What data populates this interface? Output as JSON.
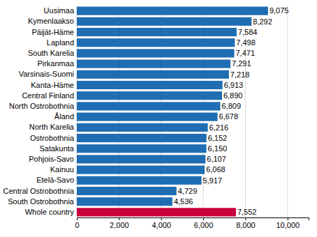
{
  "chart_data": {
    "type": "bar",
    "orientation": "horizontal",
    "categories": [
      "Uusimaa",
      "Kymenlaakso",
      "Päijät-Häme",
      "Lapland",
      "South Karelia",
      "Pirkanmaa",
      "Varsinais-Suomi",
      "Kanta-Häme",
      "Central Finland",
      "North Ostrobothnia",
      "Åland",
      "North Karelia",
      "Ostrobothnia",
      "Satakunta",
      "Pohjois-Savo",
      "Kainuu",
      "Etelä-Savo",
      "Central Ostrobothnia",
      "South Ostrobothnia",
      "Whole country"
    ],
    "values": [
      9075,
      8292,
      7584,
      7498,
      7471,
      7291,
      7218,
      6913,
      6890,
      6809,
      6678,
      6216,
      6152,
      6150,
      6107,
      6068,
      5917,
      4729,
      4536,
      7552
    ],
    "value_labels": [
      "9,075",
      "8,292",
      "7,584",
      "7,498",
      "7,471",
      "7,291",
      "7,218",
      "6,913",
      "6,890",
      "6,809",
      "6,678",
      "6,216",
      "6,152",
      "6,150",
      "6,107",
      "6,068",
      "5,917",
      "4,729",
      "4,536",
      "7,552"
    ],
    "colors": [
      "#1f6eb3",
      "#1f6eb3",
      "#1f6eb3",
      "#1f6eb3",
      "#1f6eb3",
      "#1f6eb3",
      "#1f6eb3",
      "#1f6eb3",
      "#1f6eb3",
      "#1f6eb3",
      "#1f6eb3",
      "#1f6eb3",
      "#1f6eb3",
      "#1f6eb3",
      "#1f6eb3",
      "#1f6eb3",
      "#1f6eb3",
      "#1f6eb3",
      "#1f6eb3",
      "#c8003c"
    ],
    "xlim": [
      0,
      11000
    ],
    "xticks": [
      0,
      {
        "value": 2000,
        "label": "2,000"
      },
      {
        "value": 4000,
        "label": "4,000"
      },
      {
        "value": 6000,
        "label": "6,000"
      },
      {
        "value": 8000,
        "label": "8,000"
      },
      {
        "value": 10000,
        "label": "10,000"
      }
    ],
    "grid": true,
    "data_labels": true
  }
}
